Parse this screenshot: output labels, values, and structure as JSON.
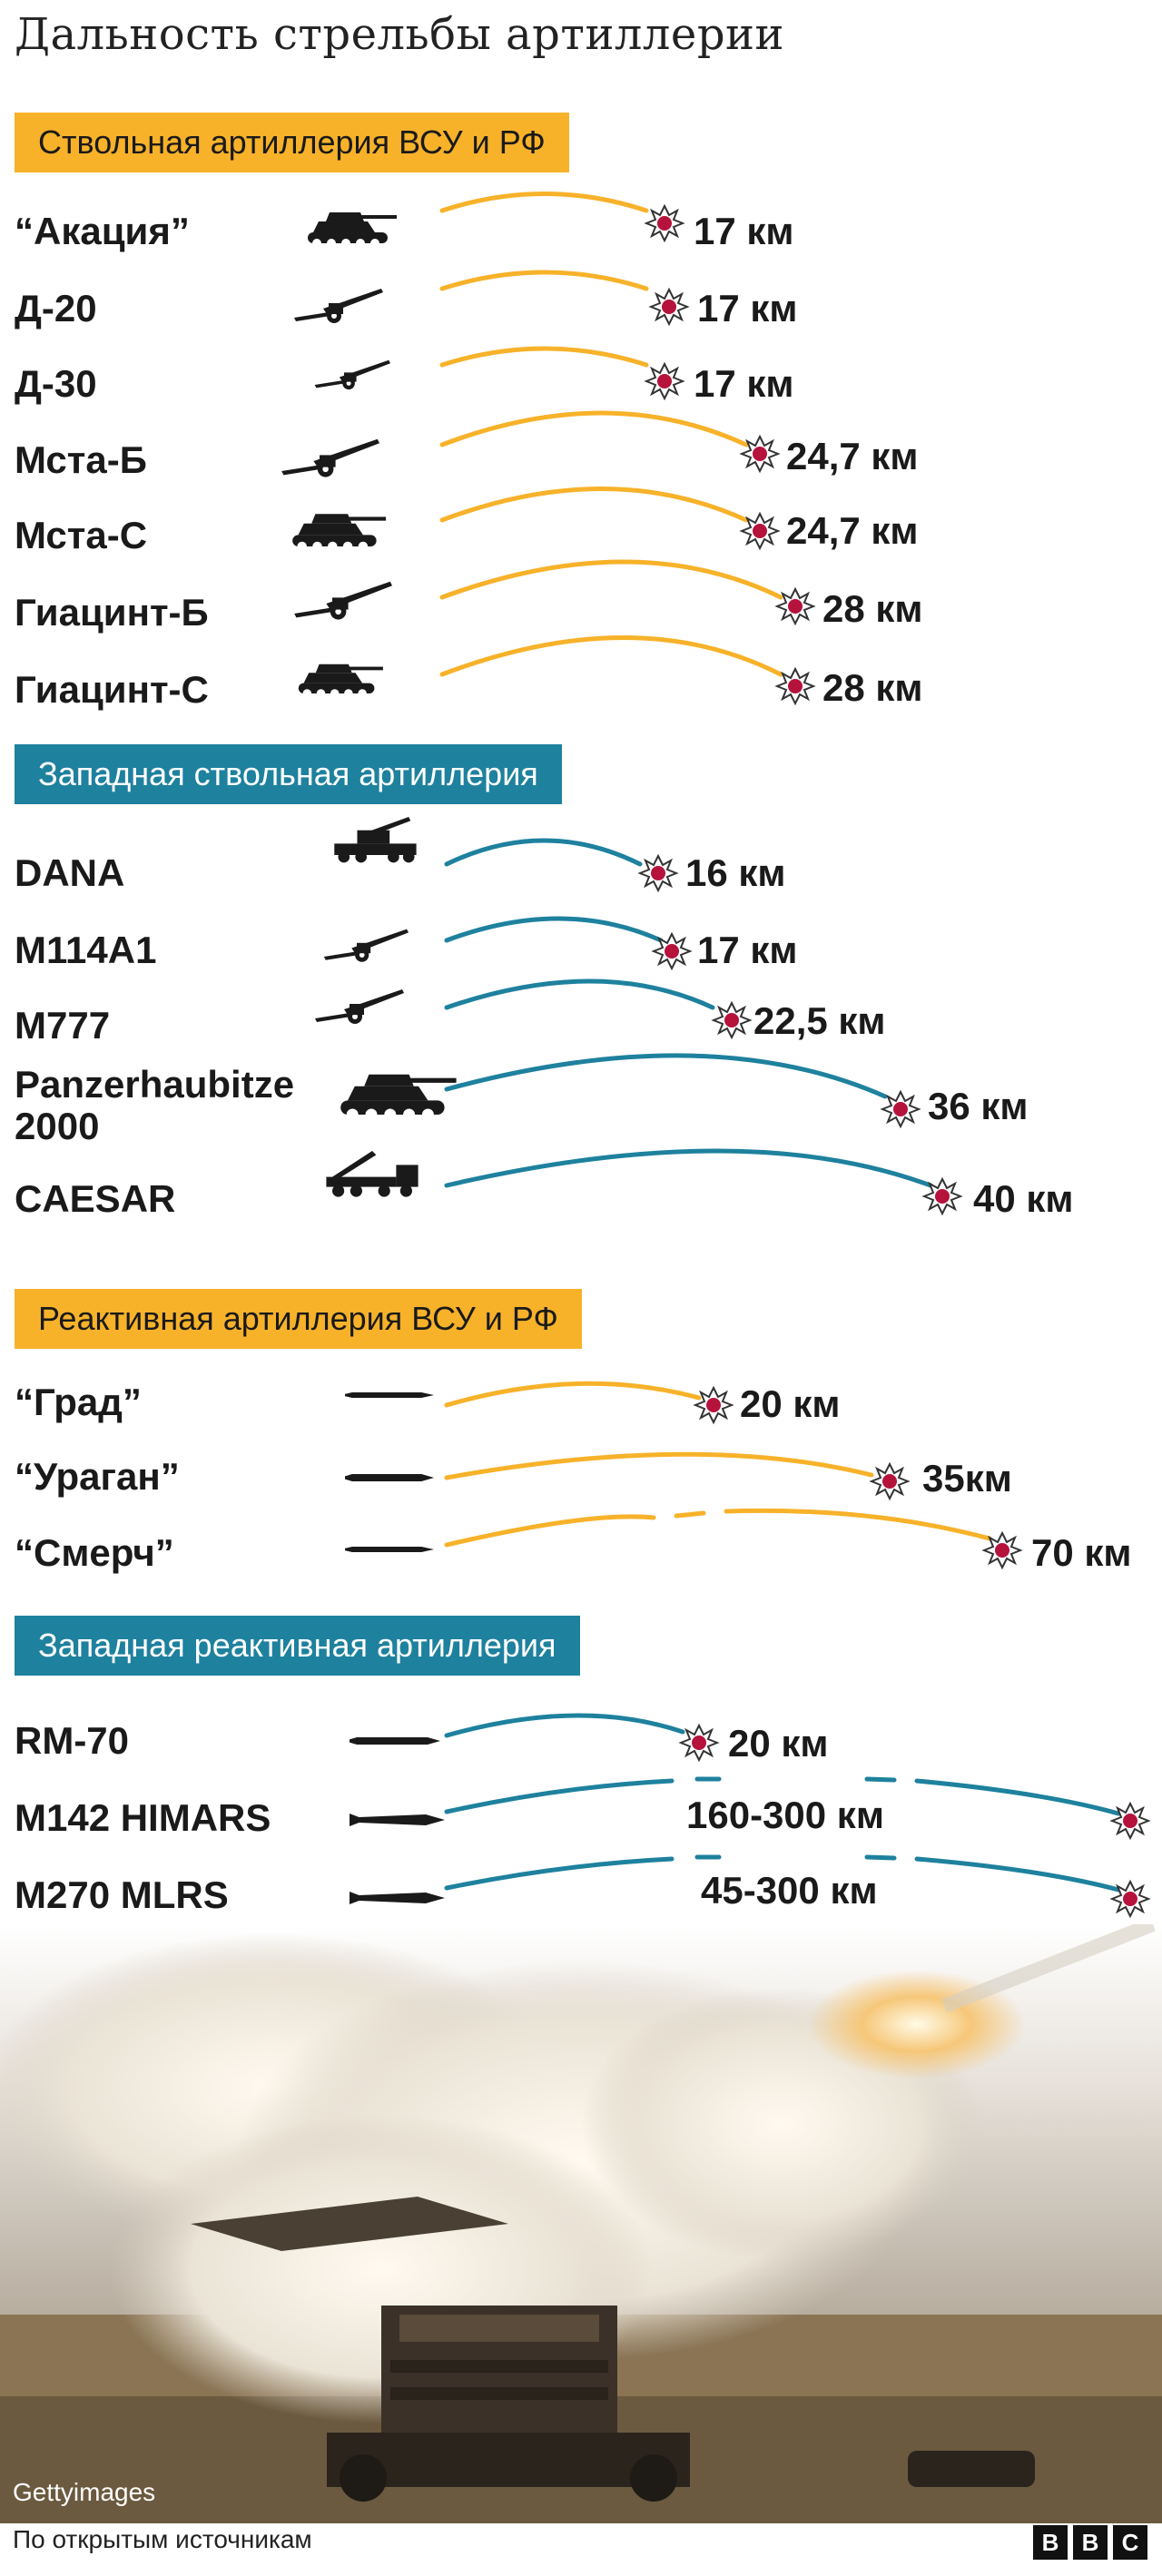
{
  "title": "Дальность стрельбы артиллерии",
  "colors": {
    "orange": "#f7b22a",
    "teal": "#1e819e",
    "burst": "#b5123c"
  },
  "sections": [
    {
      "label": "Ствольная артиллерия ВСУ и РФ",
      "color": "orange",
      "items": [
        {
          "name": "“Акация”",
          "range": "17 км",
          "icon": "self-propelled-howitzer-icon"
        },
        {
          "name": "Д-20",
          "range": "17 км",
          "icon": "towed-howitzer-icon"
        },
        {
          "name": "Д-30",
          "range": "17 км",
          "icon": "towed-howitzer-icon"
        },
        {
          "name": "Мста-Б",
          "range": "24,7 км",
          "icon": "towed-howitzer-icon"
        },
        {
          "name": "Мста-С",
          "range": "24,7 км",
          "icon": "self-propelled-howitzer-icon"
        },
        {
          "name": "Гиацинт-Б",
          "range": "28 км",
          "icon": "towed-gun-icon"
        },
        {
          "name": "Гиацинт-С",
          "range": "28 км",
          "icon": "self-propelled-gun-icon"
        }
      ]
    },
    {
      "label": "Западная ствольная артиллерия",
      "color": "teal",
      "items": [
        {
          "name": "DANA",
          "range": "16 км",
          "icon": "wheeled-howitzer-icon"
        },
        {
          "name": "M114A1",
          "range": "17 км",
          "icon": "towed-howitzer-icon"
        },
        {
          "name": "M777",
          "range": "22,5 км",
          "icon": "towed-howitzer-icon"
        },
        {
          "name": "Panzerhaubitze 2000",
          "range": "36 км",
          "icon": "self-propelled-howitzer-icon"
        },
        {
          "name": "CAESAR",
          "range": "40 км",
          "icon": "truck-mounted-gun-icon"
        }
      ]
    },
    {
      "label": "Реактивная артиллерия ВСУ и РФ",
      "color": "orange",
      "items": [
        {
          "name": "“Град”",
          "range": "20 км",
          "icon": "rocket-icon"
        },
        {
          "name": "“Ураган”",
          "range": "35км",
          "icon": "rocket-icon"
        },
        {
          "name": "“Смерч”",
          "range": "70 км",
          "icon": "rocket-icon"
        }
      ]
    },
    {
      "label": "Западная реактивная артиллерия",
      "color": "teal",
      "items": [
        {
          "name": "RM-70",
          "range": "20 км",
          "icon": "rocket-icon"
        },
        {
          "name": "M142 HIMARS",
          "range": "160-300 км",
          "icon": "missile-icon"
        },
        {
          "name": "M270 MLRS",
          "range": "45-300 км",
          "icon": "missile-icon"
        }
      ]
    }
  ],
  "photo_credit": "Gettyimages",
  "source": "По открытым источникам",
  "logo": [
    "B",
    "B",
    "C"
  ]
}
